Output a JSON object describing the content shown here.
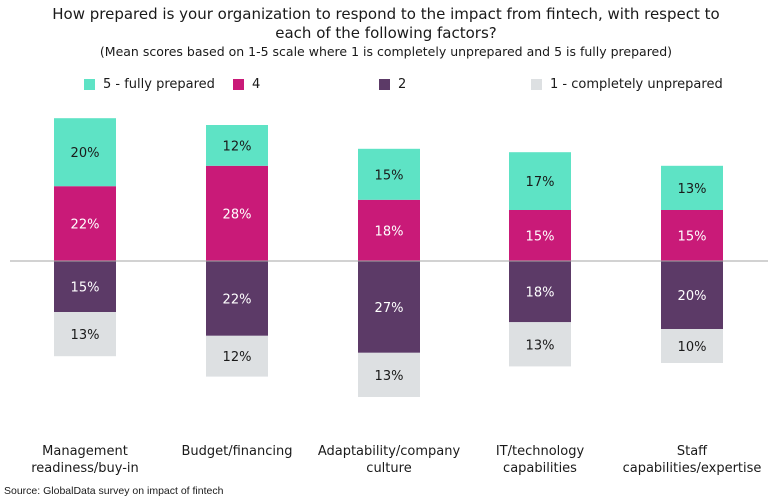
{
  "title_line1": "How prepared is your organization to respond to the impact from fintech, with respect to",
  "title_line2": "each of the following factors?",
  "subtitle": "(Mean scores based on 1-5 scale where 1 is completely unprepared and 5 is fully prepared)",
  "source": "Source: GlobalData survey on impact of fintech",
  "chart_data": {
    "type": "bar",
    "stacking": "diverging",
    "categories": [
      [
        "Management",
        "readiness/buy-in"
      ],
      [
        "Budget/financing"
      ],
      [
        "Adaptability/company",
        "culture"
      ],
      [
        "IT/technology",
        "capabilities"
      ],
      [
        "Staff",
        "capabilities/expertise"
      ]
    ],
    "series": [
      {
        "name": "5 - fully prepared",
        "color": "#5ee3c5",
        "direction": "up",
        "order": 2,
        "values": [
          20,
          12,
          15,
          17,
          13
        ]
      },
      {
        "name": "4",
        "color": "#c91a78",
        "direction": "up",
        "order": 1,
        "values": [
          22,
          28,
          18,
          15,
          15
        ]
      },
      {
        "name": "2",
        "color": "#5c3a67",
        "direction": "down",
        "order": 1,
        "values": [
          15,
          22,
          27,
          18,
          20
        ]
      },
      {
        "name": "1 - completely unprepared",
        "color": "#dde0e2",
        "direction": "down",
        "order": 2,
        "values": [
          13,
          12,
          13,
          13,
          10
        ]
      }
    ],
    "value_suffix": "%",
    "legend_position": "top",
    "grid": false
  }
}
